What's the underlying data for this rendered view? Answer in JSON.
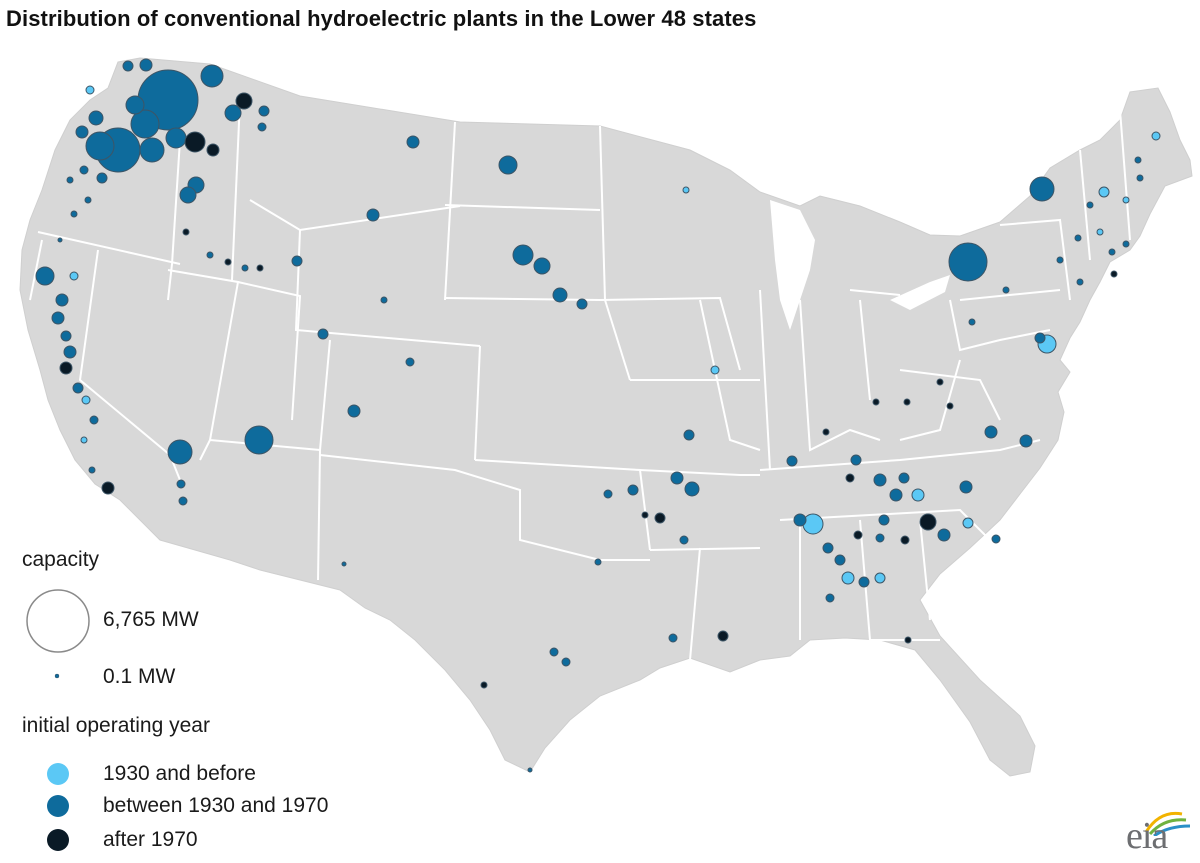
{
  "title": "Distribution of conventional hydroelectric plants in the Lower 48 states",
  "legend": {
    "capacity_heading": "capacity",
    "max_label": "6,765 MW",
    "min_label": "0.1 MW",
    "year_heading": "initial operating year",
    "categories": [
      {
        "label": "1930 and before",
        "color": "#5bc8f5"
      },
      {
        "label": "between 1930 and 1970",
        "color": "#0e6b9c"
      },
      {
        "label": "after 1970",
        "color": "#0a1a26"
      }
    ]
  },
  "logo": {
    "text": "eia"
  },
  "map_colors": {
    "land": "#d8d8d8",
    "border": "#ffffff"
  }
}
